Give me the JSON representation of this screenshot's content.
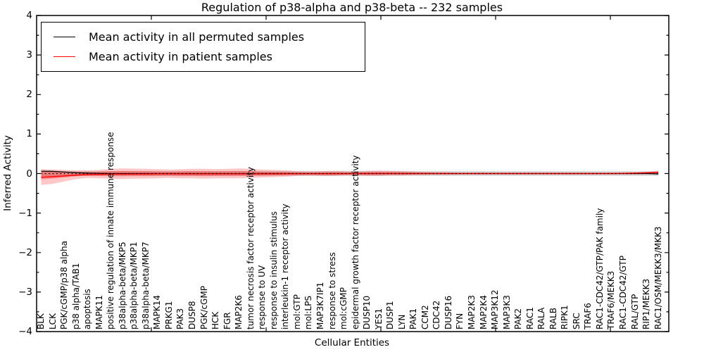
{
  "chart_data": {
    "type": "line",
    "title": "Regulation of p38-alpha and p38-beta -- 232 samples",
    "xlabel": "Cellular Entities",
    "ylabel": "Inferred Activity",
    "ylim": [
      -4,
      4
    ],
    "yticks": [
      4,
      3,
      2,
      1,
      0,
      -1,
      -2,
      -3,
      -4
    ],
    "ytick_labels": [
      "4",
      "3",
      "2",
      "1",
      "0",
      "−1",
      "−2",
      "−3",
      "−4"
    ],
    "grid": false,
    "legend_position": "upper left",
    "legend": [
      {
        "label": "Mean activity in all permuted samples",
        "color": "#000000"
      },
      {
        "label": "Mean activity in patient samples",
        "color": "#ff0000"
      }
    ],
    "categories": [
      "BLK",
      "LCK",
      "PGK/cGMP/p38 alpha",
      "p38 alpha/TAB1",
      "apoptosis",
      "MAPK11",
      "positive regulation of innate immune response",
      "p38alpha-beta/MKP5",
      "p38alpha-beta/MKP1",
      "p38alpha-beta/MKP7",
      "MAPK14",
      "PRKG1",
      "PAK3",
      "DUSP8",
      "PGK/cGMP",
      "HCK",
      "FGR",
      "MAP2K6",
      "tumor necrosis factor receptor activity",
      "response to UV",
      "response to insulin stimulus",
      "interleukin-1 receptor activity",
      "mol:GTP",
      "mol:LPS",
      "MAP3K7IP1",
      "response to stress",
      "mol:cGMP",
      "epidermal growth factor receptor activity",
      "DUSP10",
      "YES1",
      "DUSP1",
      "LYN",
      "PAK1",
      "CCM2",
      "CDC42",
      "DUSP16",
      "FYN",
      "MAP2K3",
      "MAP2K4",
      "MAP3K12",
      "MAP3K3",
      "PAK2",
      "RAC1",
      "RALA",
      "RALB",
      "RIPK1",
      "SRC",
      "TRAF6",
      "RAC1-CDC42/GTP/PAK family",
      "TRAF6/MEKK3",
      "RAC1-CDC42/GTP",
      "RAL/GTP",
      "RIP1/MEKK3",
      "RAC1/OSM/MEKK3/MKK3"
    ],
    "series": [
      {
        "name": "Mean activity in all permuted samples",
        "color": "#000000",
        "values": [
          0.06,
          0.055,
          0.04,
          0.02,
          0.01,
          0.005,
          0,
          0,
          0,
          0,
          0,
          0,
          0,
          0,
          0,
          0,
          0,
          0,
          0,
          0,
          0,
          0,
          0,
          0,
          0,
          0,
          0,
          0,
          0,
          0,
          0,
          0,
          0,
          0,
          0,
          0,
          0,
          0,
          0,
          0,
          0,
          0,
          0,
          0,
          0,
          0,
          0,
          0,
          0,
          0,
          0,
          0,
          0,
          -0.01
        ]
      },
      {
        "name": "Mean activity in patient samples",
        "color": "#ff0000",
        "values": [
          -0.095,
          -0.08,
          -0.06,
          -0.04,
          -0.025,
          -0.02,
          -0.015,
          -0.012,
          -0.01,
          -0.01,
          -0.008,
          -0.008,
          -0.008,
          -0.008,
          -0.008,
          -0.008,
          -0.008,
          -0.008,
          -0.008,
          -0.008,
          -0.008,
          -0.005,
          -0.005,
          -0.005,
          -0.005,
          -0.005,
          -0.005,
          0,
          0,
          0,
          0,
          0,
          0,
          0,
          0,
          0,
          0,
          0,
          0,
          0,
          0,
          0,
          0,
          0,
          0,
          0,
          0,
          0,
          0,
          0,
          0.005,
          0.01,
          0.02,
          0.03
        ]
      }
    ],
    "patient_band": {
      "color": "#ff0000",
      "outer_opacity": 0.22,
      "inner_opacity": 0.28,
      "inner_scale": 0.5,
      "upper": [
        0.11,
        0.1,
        0.09,
        0.08,
        0.08,
        0.09,
        0.12,
        0.13,
        0.125,
        0.12,
        0.11,
        0.1,
        0.11,
        0.12,
        0.12,
        0.11,
        0.12,
        0.13,
        0.12,
        0.1,
        0.09,
        0.08,
        0.06,
        0.055,
        0.06,
        0.07,
        0.06,
        0.05,
        0.07,
        0.075,
        0.07,
        0.06,
        0.05,
        0.04,
        0.035,
        0.03,
        0.025,
        0.025,
        0.025,
        0.025,
        0.025,
        0.025,
        0.025,
        0.025,
        0.025,
        0.025,
        0.025,
        0.025,
        0.025,
        0.025,
        0.025,
        0.025,
        0.035,
        0.06
      ],
      "lower": [
        -0.29,
        -0.26,
        -0.2,
        -0.14,
        -0.11,
        -0.12,
        -0.13,
        -0.14,
        -0.13,
        -0.13,
        -0.12,
        -0.11,
        -0.12,
        -0.12,
        -0.13,
        -0.12,
        -0.12,
        -0.12,
        -0.11,
        -0.1,
        -0.09,
        -0.08,
        -0.06,
        -0.055,
        -0.06,
        -0.065,
        -0.05,
        -0.05,
        -0.06,
        -0.06,
        -0.05,
        -0.05,
        -0.04,
        -0.035,
        -0.03,
        -0.03,
        -0.025,
        -0.025,
        -0.025,
        -0.025,
        -0.025,
        -0.025,
        -0.025,
        -0.025,
        -0.025,
        -0.025,
        -0.025,
        -0.025,
        -0.025,
        -0.025,
        -0.025,
        -0.025,
        -0.02,
        -0.01
      ]
    },
    "permuted_band": {
      "color": "#808080",
      "opacity": 0.3,
      "upper": 0.06,
      "lower": -0.06
    },
    "zero_line": 0
  }
}
